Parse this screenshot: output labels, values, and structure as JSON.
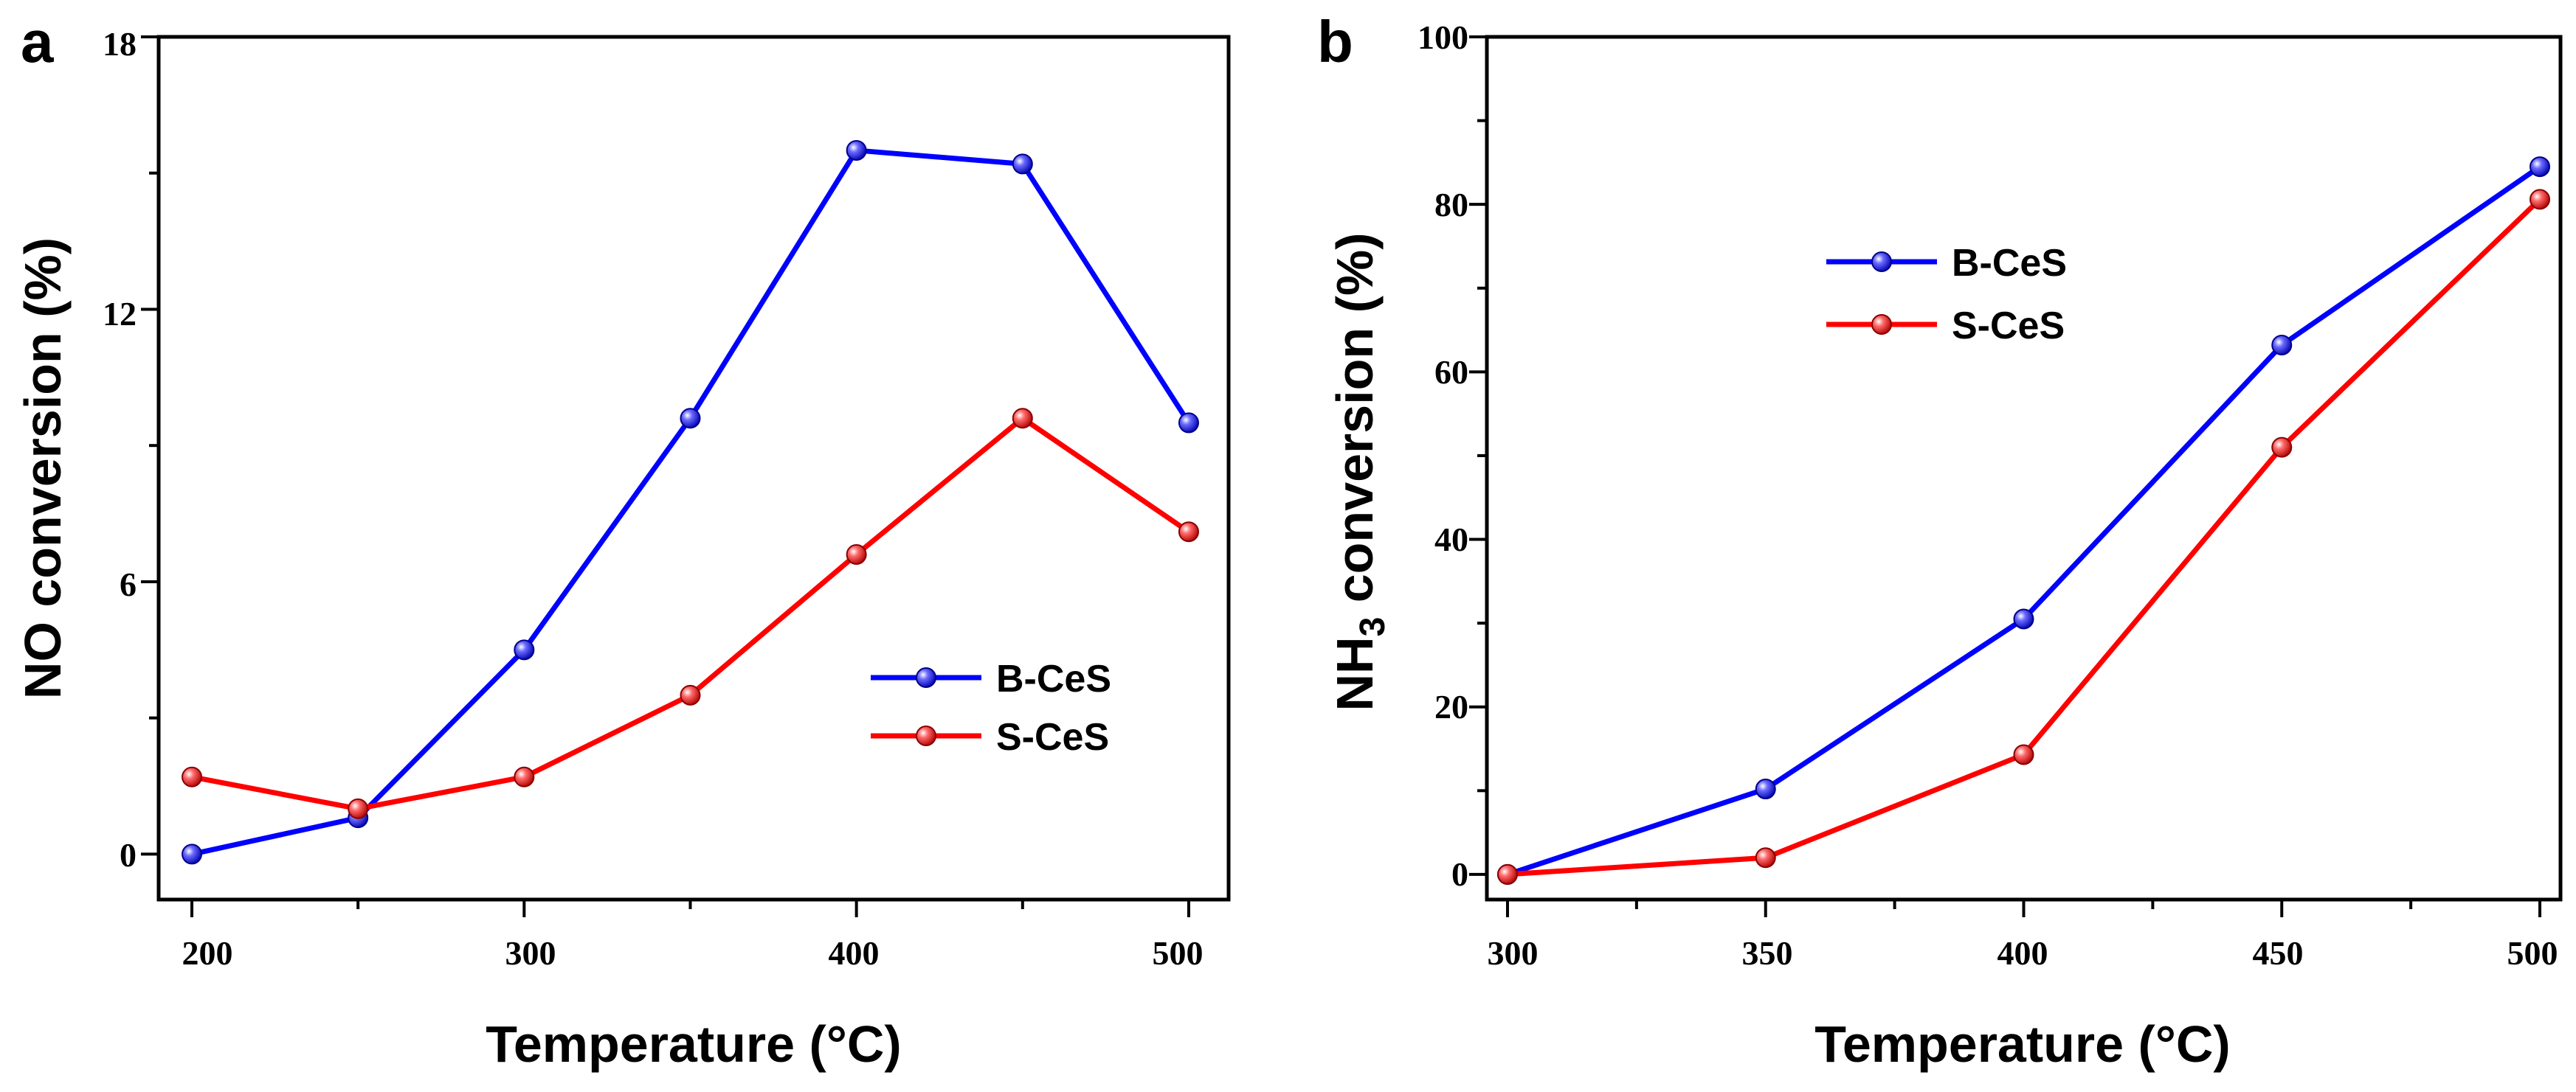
{
  "chart_data": [
    {
      "panel": "a",
      "type": "line",
      "title": "",
      "xlabel": "Temperature (°C)",
      "ylabel": "NO conversion (%)",
      "x": [
        200,
        250,
        300,
        350,
        400,
        450,
        500
      ],
      "xticks": [
        "200",
        "300",
        "400",
        "500"
      ],
      "yticks": [
        "0",
        "6",
        "12",
        "18"
      ],
      "xlim": [
        190,
        512
      ],
      "ylim": [
        -1,
        18
      ],
      "legend_position": "center-right",
      "series": [
        {
          "name": "B-CeS",
          "color": "#0000ff",
          "values": [
            0.0,
            0.8,
            4.5,
            9.6,
            15.5,
            15.2,
            9.5
          ]
        },
        {
          "name": "S-CeS",
          "color": "#ff0000",
          "values": [
            1.7,
            1.0,
            1.7,
            3.5,
            6.6,
            9.6,
            7.1
          ]
        }
      ]
    },
    {
      "panel": "b",
      "type": "line",
      "title": "",
      "xlabel": "Temperature (°C)",
      "ylabel_main": "NH",
      "ylabel_sub": "3",
      "ylabel_rest": " conversion (%)",
      "x": [
        300,
        350,
        400,
        450,
        500
      ],
      "xticks": [
        "300",
        "350",
        "400",
        "450",
        "500"
      ],
      "yticks": [
        "0",
        "20",
        "40",
        "60",
        "80",
        "100"
      ],
      "xlim": [
        296,
        504
      ],
      "ylim": [
        -3,
        100
      ],
      "legend_position": "top-left",
      "series": [
        {
          "name": "B-CeS",
          "color": "#0000ff",
          "values": [
            0.0,
            10.2,
            30.5,
            63.2,
            84.5
          ]
        },
        {
          "name": "S-CeS",
          "color": "#ff0000",
          "values": [
            0.0,
            2.0,
            14.3,
            51.0,
            80.6
          ]
        }
      ]
    }
  ]
}
